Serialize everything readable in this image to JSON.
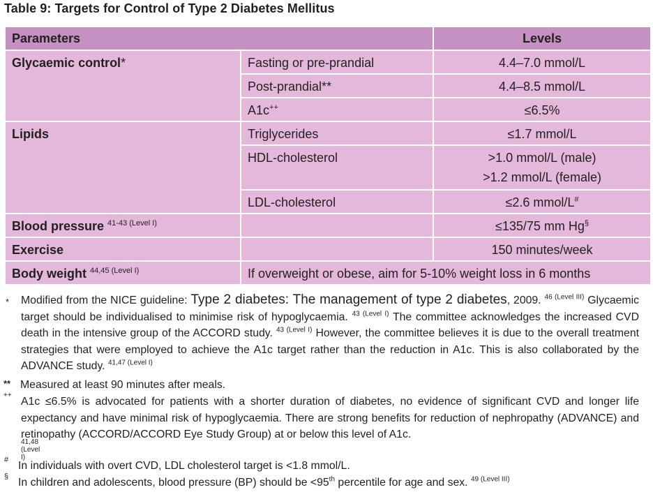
{
  "title": "Table 9: Targets for Control of Type 2 Diabetes Mellitus",
  "table": {
    "header": {
      "parameters": "Parameters",
      "levels": "Levels"
    },
    "glycaemic": {
      "label": "Glycaemic control",
      "label_mark": "*",
      "rows": [
        {
          "sub": "Fasting or pre-prandial",
          "level": "4.4–7.0 mmol/L"
        },
        {
          "sub": "Post-prandial**",
          "level": "4.4–8.5 mmol/L"
        },
        {
          "sub": "A1c",
          "sub_sup": "++",
          "level": "≤6.5%"
        }
      ]
    },
    "lipids": {
      "label": "Lipids",
      "tg": {
        "sub": "Triglycerides",
        "level": "≤1.7 mmol/L"
      },
      "hdl": {
        "sub": "HDL-cholesterol",
        "level_male": ">1.0 mmol/L (male)",
        "level_female": ">1.2 mmol/L (female)"
      },
      "ldl": {
        "sub": "LDL-cholesterol",
        "level": "≤2.6 mmol/L",
        "level_sup": "#"
      }
    },
    "bp": {
      "label": "Blood pressure",
      "label_sup": "41-43 (Level I)",
      "level": "≤135/75 mm Hg",
      "level_sup": "§"
    },
    "exercise": {
      "label": "Exercise",
      "level": "150 minutes/week"
    },
    "weight": {
      "label": "Body weight",
      "label_sup": "44,45 (Level I)",
      "level": "If overweight or obese, aim for 5-10% weight loss in 6 months"
    }
  },
  "notes": {
    "n1": {
      "mark": "*",
      "line1_a": "Modified from the NICE guideline:",
      "line1_b": "Type 2 diabetes: The management of type 2 diabetes",
      "line1_c": ", 2009.",
      "line1_sup": "46 (Level III)",
      "line2_a": "Glycaemic target should be individualised to minimise risk of hypoglycaemia.",
      "line2_sup": "43 (Level I)",
      "line2_b": "The committee acknowledges the increased CVD death in the intensive group of the ACCORD study.",
      "line2_sup2": "43 (Level I)",
      "line2_c": "However, the committee believes it is due to the overall treatment strategies that were employed to achieve the A1c target rather than the reduction in A1c. This is also collaborated by the ADVANCE study.",
      "line2_sup3": "41,47 (Level I)"
    },
    "n2": {
      "mark": "**",
      "text": "Measured at least 90 minutes after meals."
    },
    "n3": {
      "mark": "++",
      "text": "A1c ≤6.5% is advocated for patients with a shorter duration of diabetes, no evidence of significant CVD and longer life expectancy and have minimal risk of hypoglycaemia. There are strong benefits for reduction of nephropathy (ADVANCE) and retinopathy (ACCORD/ACCORD Eye Study Group) at or below this level of A1c.",
      "sup": "41,48 (Level I)"
    },
    "n4": {
      "mark": "#",
      "text": "In individuals with overt CVD, LDL cholesterol target is <1.8 mmol/L."
    },
    "n5": {
      "mark": "§",
      "text_a": "In children and adolescents, blood pressure (BP) should be <95",
      "text_sup": "th",
      "text_b": "percentile for age and sex.",
      "sup": "49 (Level III)"
    }
  }
}
